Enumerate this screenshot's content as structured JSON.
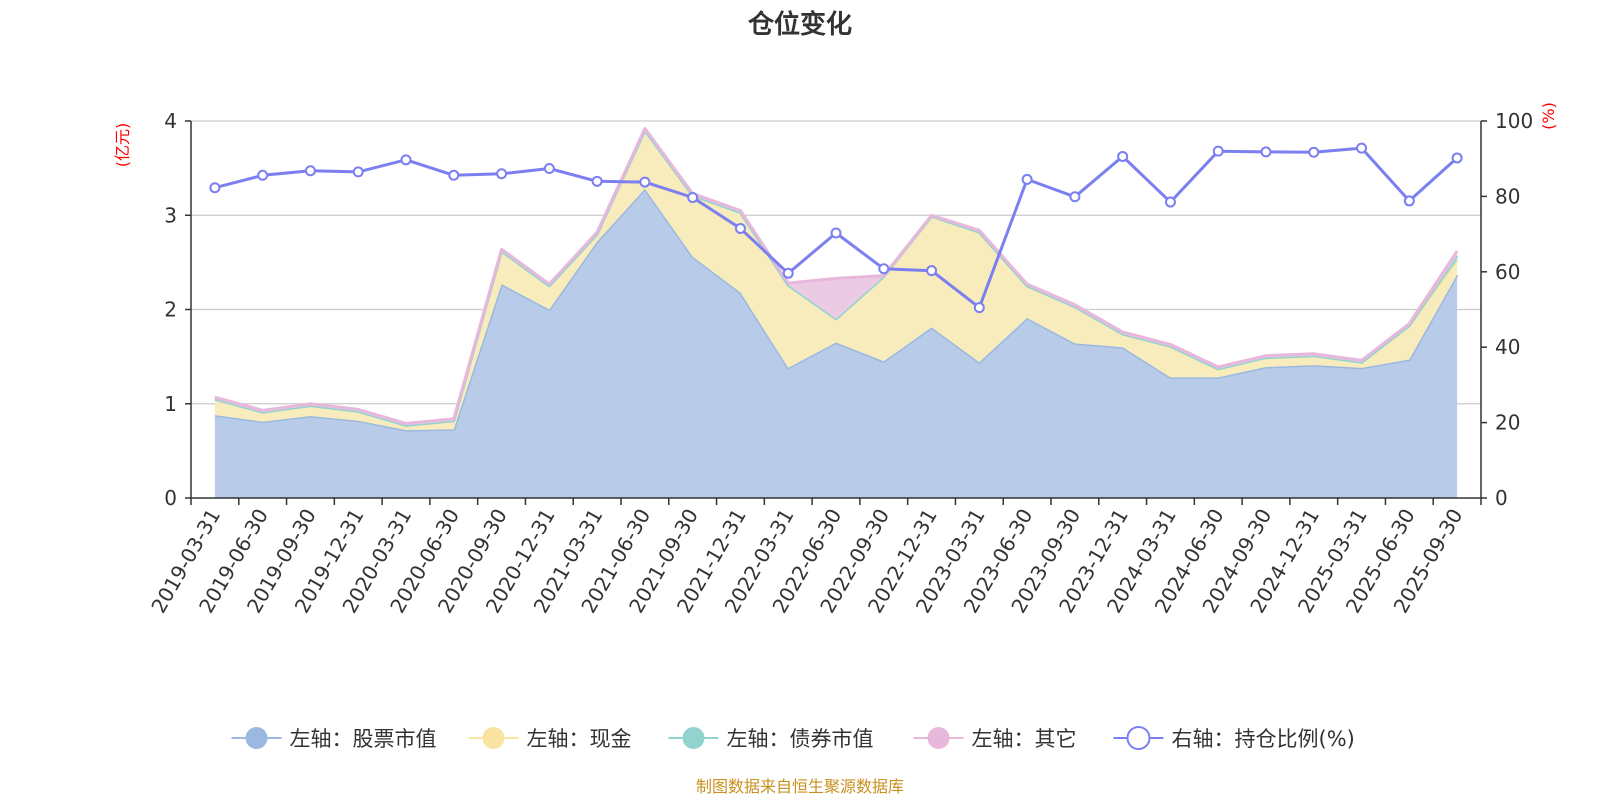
{
  "chart_data": {
    "type": "area",
    "title": "仓位变化",
    "left_axis_unit": "(亿元)",
    "right_axis_unit": "(%)",
    "left_ylim": [
      0,
      4
    ],
    "left_ticks": [
      0,
      1,
      2,
      3,
      4
    ],
    "right_ylim": [
      0,
      100
    ],
    "right_ticks": [
      0,
      20,
      40,
      60,
      80,
      100
    ],
    "grid": true,
    "legend_position": "bottom",
    "categories": [
      "2019-03-31",
      "2019-06-30",
      "2019-09-30",
      "2019-12-31",
      "2020-03-31",
      "2020-06-30",
      "2020-09-30",
      "2020-12-31",
      "2021-03-31",
      "2021-06-30",
      "2021-09-30",
      "2021-12-31",
      "2022-03-31",
      "2022-06-30",
      "2022-09-30",
      "2022-12-31",
      "2023-03-31",
      "2023-06-30",
      "2023-09-30",
      "2023-12-31",
      "2024-03-31",
      "2024-06-30",
      "2024-09-30",
      "2024-12-31",
      "2025-03-31",
      "2025-06-30",
      "2025-09-30"
    ],
    "series": [
      {
        "name": "左轴：股票市值",
        "axis": "left",
        "kind": "stacked-area",
        "color": "#9bb8e0",
        "fill": "#b8cce9",
        "values": [
          0.88,
          0.81,
          0.87,
          0.82,
          0.72,
          0.73,
          2.27,
          2.0,
          2.72,
          3.28,
          2.56,
          2.18,
          1.38,
          1.65,
          1.45,
          1.81,
          1.44,
          1.91,
          1.64,
          1.6,
          1.28,
          1.28,
          1.39,
          1.41,
          1.38,
          1.47,
          2.37
        ]
      },
      {
        "name": "左轴：现金",
        "axis": "left",
        "kind": "stacked-area",
        "color": "#f8e4a0",
        "fill": "#f8ecbd",
        "values": [
          0.17,
          0.1,
          0.11,
          0.1,
          0.05,
          0.09,
          0.35,
          0.25,
          0.08,
          0.62,
          0.65,
          0.85,
          0.88,
          0.25,
          0.9,
          1.18,
          1.38,
          0.34,
          0.39,
          0.14,
          0.33,
          0.09,
          0.1,
          0.1,
          0.06,
          0.36,
          0.15
        ]
      },
      {
        "name": "左轴：债券市值",
        "axis": "left",
        "kind": "stacked-area",
        "color": "#92d3d0",
        "fill": "#a9ddd9",
        "values": [
          0,
          0,
          0,
          0,
          0,
          0,
          0,
          0,
          0,
          0,
          0,
          0,
          0,
          0,
          0,
          0,
          0,
          0,
          0,
          0,
          0,
          0,
          0,
          0,
          0,
          0,
          0.05
        ]
      },
      {
        "name": "左轴：其它",
        "axis": "left",
        "kind": "stacked-area",
        "color": "#e8b7dc",
        "fill": "#ebcbe4",
        "values": [
          0.02,
          0.02,
          0.02,
          0.02,
          0.02,
          0.02,
          0.02,
          0.02,
          0.02,
          0.02,
          0.02,
          0.02,
          0.02,
          0.43,
          0.01,
          0.01,
          0.02,
          0.02,
          0.02,
          0.02,
          0.02,
          0.02,
          0.02,
          0.02,
          0.02,
          0.02,
          0.05
        ]
      },
      {
        "name": "右轴：持仓比例(%)",
        "axis": "right",
        "kind": "line",
        "color": "#7b7ff0",
        "values": [
          82.3,
          85.6,
          86.8,
          86.5,
          89.7,
          85.6,
          86.0,
          87.4,
          84.0,
          83.8,
          79.7,
          71.5,
          59.6,
          70.3,
          60.8,
          60.3,
          50.5,
          84.5,
          79.9,
          90.6,
          78.5,
          92.0,
          91.8,
          91.7,
          92.8,
          78.8,
          90.2
        ]
      }
    ],
    "source_note": "制图数据来自恒生聚源数据库"
  }
}
